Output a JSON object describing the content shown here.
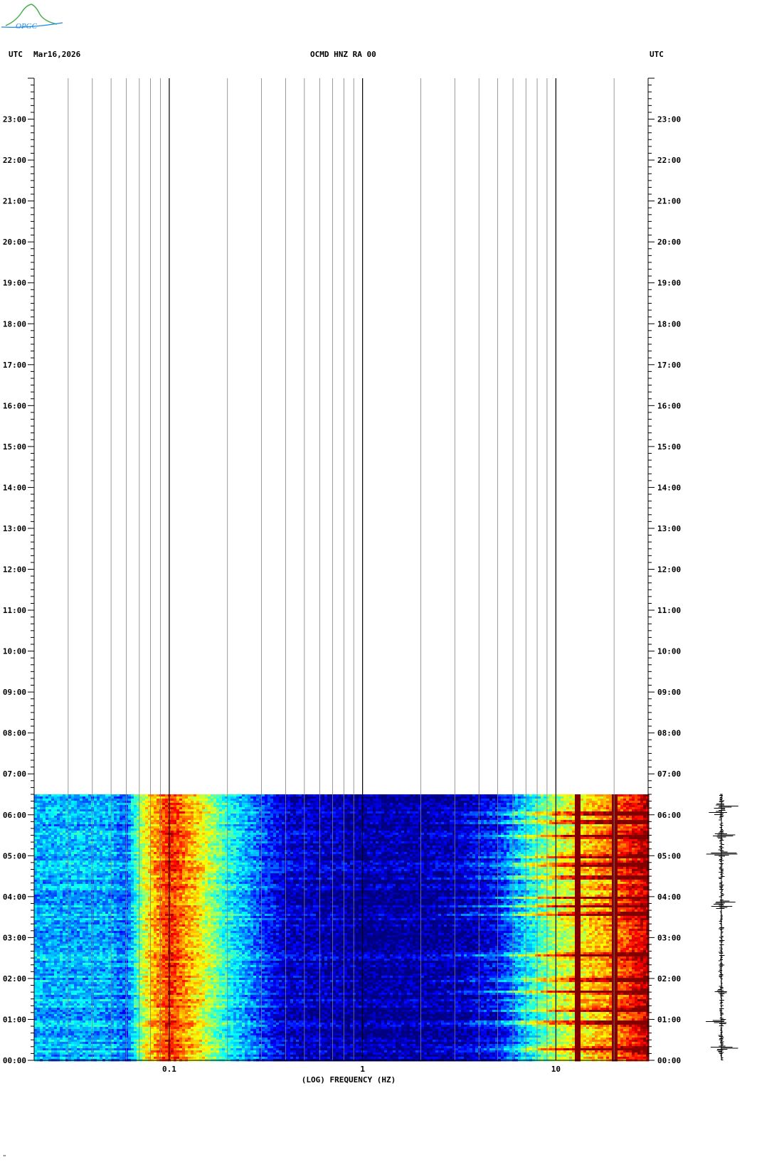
{
  "header": {
    "left_label": "UTC",
    "date": "Mar16,2026",
    "station": "OCMD HNZ RA 00",
    "right_label": "UTC"
  },
  "logo_text": "OPGC",
  "footer_mark": "\"",
  "colors": {
    "background": "#ffffff",
    "gridline": "#808080",
    "decade_line": "#000000",
    "spectrogram_low": "#00008b",
    "spectrogram_high": "#8b0000"
  },
  "chart_data": {
    "type": "heatmap",
    "title": "OCMD HNZ RA 00",
    "xlabel": "(LOG) FREQUENCY (HZ)",
    "ylabel": "",
    "x_scale": "log",
    "xlim": [
      0.02,
      30
    ],
    "x_tick_labels": [
      {
        "value": 0.1,
        "label": "0.1"
      },
      {
        "value": 1,
        "label": "1"
      },
      {
        "value": 10,
        "label": "10"
      }
    ],
    "x_gridlines": [
      0.03,
      0.04,
      0.05,
      0.06,
      0.07,
      0.08,
      0.09,
      0.1,
      0.2,
      0.3,
      0.4,
      0.5,
      0.6,
      0.7,
      0.8,
      0.9,
      1,
      2,
      3,
      4,
      5,
      6,
      7,
      8,
      9,
      10,
      20
    ],
    "ylim_hours": [
      0,
      24
    ],
    "y_tick_labels": [
      "00:00",
      "01:00",
      "02:00",
      "03:00",
      "04:00",
      "05:00",
      "06:00",
      "07:00",
      "08:00",
      "09:00",
      "10:00",
      "11:00",
      "12:00",
      "13:00",
      "14:00",
      "15:00",
      "16:00",
      "17:00",
      "18:00",
      "19:00",
      "20:00",
      "21:00",
      "22:00",
      "23:00"
    ],
    "data_end_hour": 6.5,
    "grid": true,
    "colormap": "jet",
    "spectral_profile": [
      {
        "freq": 0.02,
        "level": 0.3
      },
      {
        "freq": 0.05,
        "level": 0.3
      },
      {
        "freq": 0.06,
        "level": 0.22
      },
      {
        "freq": 0.075,
        "level": 0.6
      },
      {
        "freq": 0.1,
        "level": 0.85
      },
      {
        "freq": 0.14,
        "level": 0.65
      },
      {
        "freq": 0.2,
        "level": 0.4
      },
      {
        "freq": 0.3,
        "level": 0.2
      },
      {
        "freq": 0.4,
        "level": 0.08
      },
      {
        "freq": 1,
        "level": 0.03
      },
      {
        "freq": 3,
        "level": 0.04
      },
      {
        "freq": 5,
        "level": 0.12
      },
      {
        "freq": 7,
        "level": 0.35
      },
      {
        "freq": 10,
        "level": 0.55
      },
      {
        "freq": 20,
        "level": 0.75
      },
      {
        "freq": 30,
        "level": 0.95
      }
    ],
    "strong_lines_hz": [
      13,
      20
    ],
    "event_hours": [
      0.3,
      0.95,
      1.25,
      1.7,
      2.0,
      2.6,
      3.6,
      3.8,
      4.0,
      4.5,
      4.8,
      5.0,
      5.5,
      5.85,
      6.05
    ],
    "seismogram_event_hours": [
      6.2,
      6.05,
      5.5,
      5.05,
      3.85,
      3.75,
      1.65,
      0.95,
      0.3
    ]
  }
}
